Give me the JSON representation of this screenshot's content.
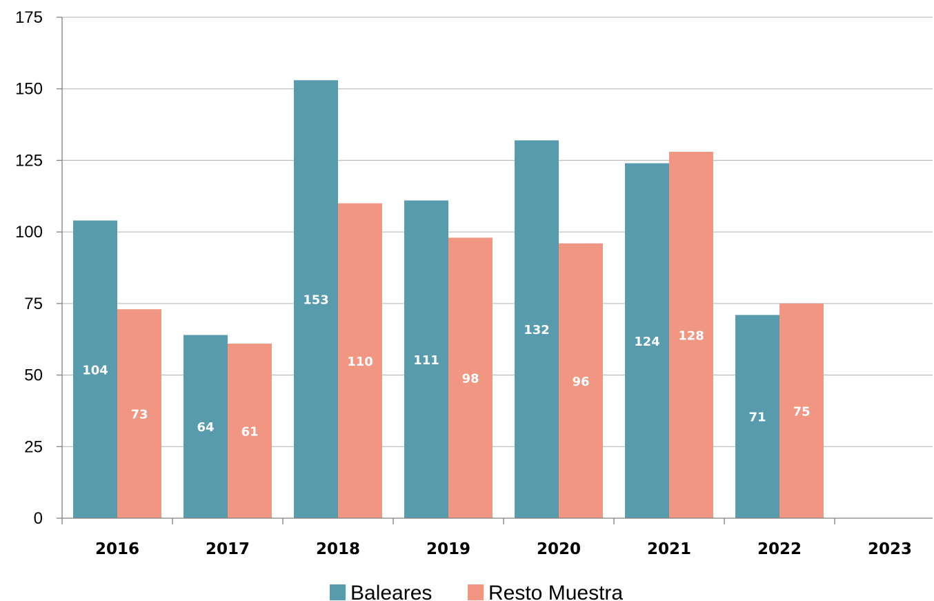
{
  "chart_data": {
    "type": "bar",
    "title": "",
    "xlabel": "",
    "ylabel": "",
    "categories": [
      "2016",
      "2017",
      "2018",
      "2019",
      "2020",
      "2021",
      "2022",
      "2023"
    ],
    "series": [
      {
        "name": "Baleares",
        "color": "#579bad",
        "values": [
          104,
          64,
          153,
          111,
          132,
          124,
          71,
          null
        ]
      },
      {
        "name": "Resto Muestra",
        "color": "#f09682",
        "values": [
          73,
          61,
          110,
          98,
          96,
          128,
          75,
          null
        ]
      }
    ],
    "ylim": [
      0,
      175
    ],
    "yticks": [
      "0",
      "25",
      "50",
      "75",
      "100",
      "125",
      "150",
      "175"
    ],
    "grid": true,
    "legend_position": "bottom-center",
    "data_labels": true
  }
}
